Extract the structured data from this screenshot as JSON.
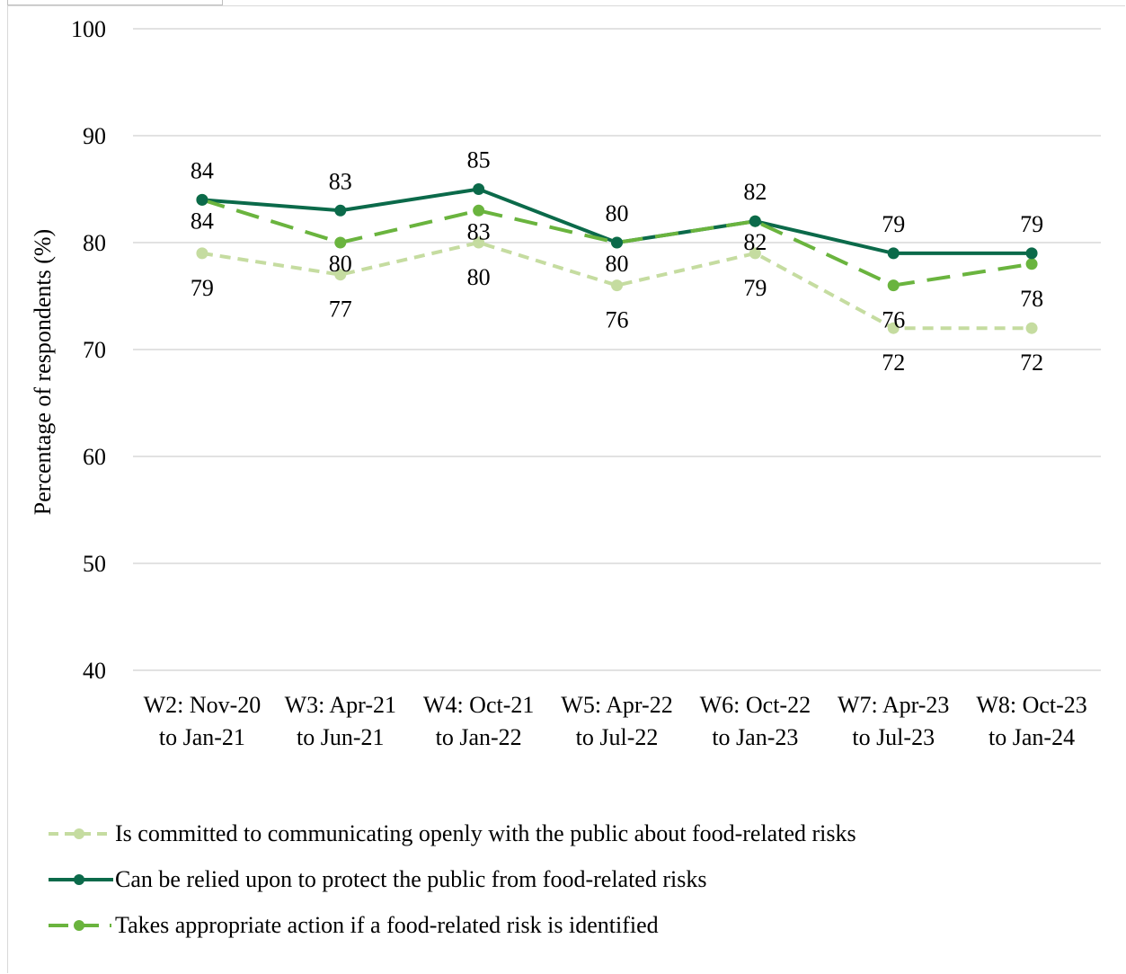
{
  "chart_data": {
    "type": "line",
    "title": "",
    "xlabel": "",
    "ylabel": "Percentage of respondents (%)",
    "ylim": [
      40,
      100
    ],
    "yticks": [
      40,
      50,
      60,
      70,
      80,
      90,
      100
    ],
    "grid": "horizontal",
    "legend_position": "bottom",
    "categories": [
      [
        "W2: Nov-20",
        "to Jan-21"
      ],
      [
        "W3: Apr-21",
        "to Jun-21"
      ],
      [
        "W4: Oct-21",
        "to Jan-22"
      ],
      [
        "W5: Apr-22",
        "to Jul-22"
      ],
      [
        "W6: Oct-22",
        "to Jan-23"
      ],
      [
        "W7: Apr-23",
        "to Jul-23"
      ],
      [
        "W8: Oct-23",
        "to Jan-24"
      ]
    ],
    "series": [
      {
        "name": "Is committed to communicating openly with the public about food-related risks",
        "values": [
          79,
          77,
          80,
          76,
          79,
          72,
          72
        ],
        "color": "#c5dca0",
        "style": "dashed"
      },
      {
        "name": "Can be relied upon to protect the public from food-related risks",
        "values": [
          84,
          83,
          85,
          80,
          82,
          79,
          79
        ],
        "color": "#0b6a4a",
        "style": "solid"
      },
      {
        "name": "Takes appropriate action if a food-related risk is identified",
        "values": [
          84,
          80,
          83,
          80,
          82,
          76,
          78
        ],
        "color": "#6ab43e",
        "style": "long-dash"
      }
    ]
  }
}
